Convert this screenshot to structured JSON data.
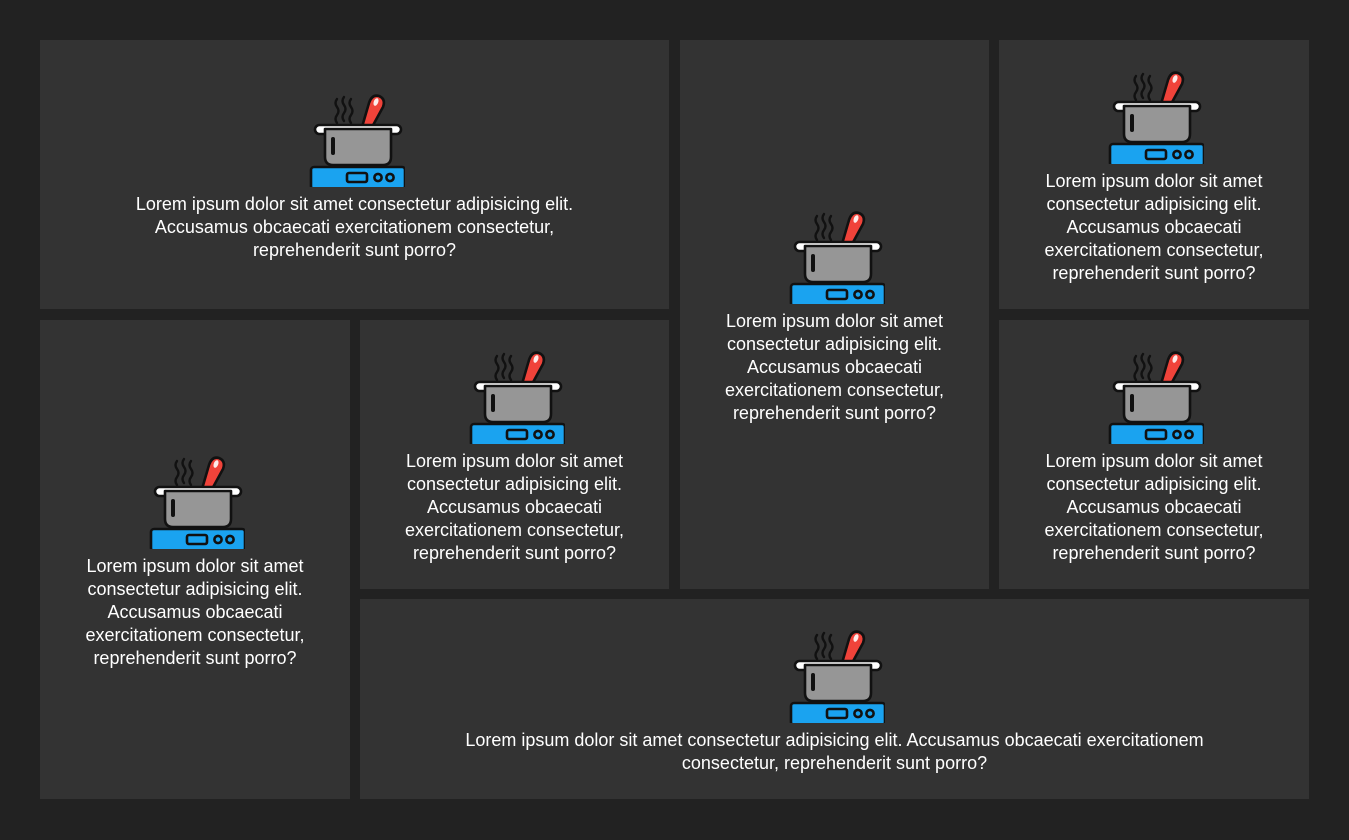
{
  "icon": "cooking-pot-on-stove-icon",
  "colors": {
    "background": "#222222",
    "card": "#333333",
    "text": "#ffffff",
    "stove": "#1aa3f0",
    "spoon": "#f0433a",
    "pot": "#969696"
  },
  "cards": [
    {
      "text": "Lorem ipsum dolor sit amet consectetur adipisicing elit. Accusamus obcaecati exercitationem consectetur, reprehenderit sunt porro?"
    },
    {
      "text": "Lorem ipsum dolor sit amet consectetur adipisicing elit. Accusamus obcaecati exercitationem consectetur, reprehenderit sunt porro?"
    },
    {
      "text": "Lorem ipsum dolor sit amet consectetur adipisicing elit. Accusamus obcaecati exercitationem consectetur, reprehenderit sunt porro?"
    },
    {
      "text": "Lorem ipsum dolor sit amet consectetur adipisicing elit. Accusamus obcaecati exercitationem consectetur, reprehenderit sunt porro?"
    },
    {
      "text": "Lorem ipsum dolor sit amet consectetur adipisicing elit. Accusamus obcaecati exercitationem consectetur, reprehenderit sunt porro?"
    },
    {
      "text": "Lorem ipsum dolor sit amet consectetur adipisicing elit. Accusamus obcaecati exercitationem consectetur, reprehenderit sunt porro?"
    },
    {
      "text": "Lorem ipsum dolor sit amet consectetur adipisicing elit. Accusamus obcaecati exercitationem consectetur, reprehenderit sunt porro?"
    }
  ]
}
